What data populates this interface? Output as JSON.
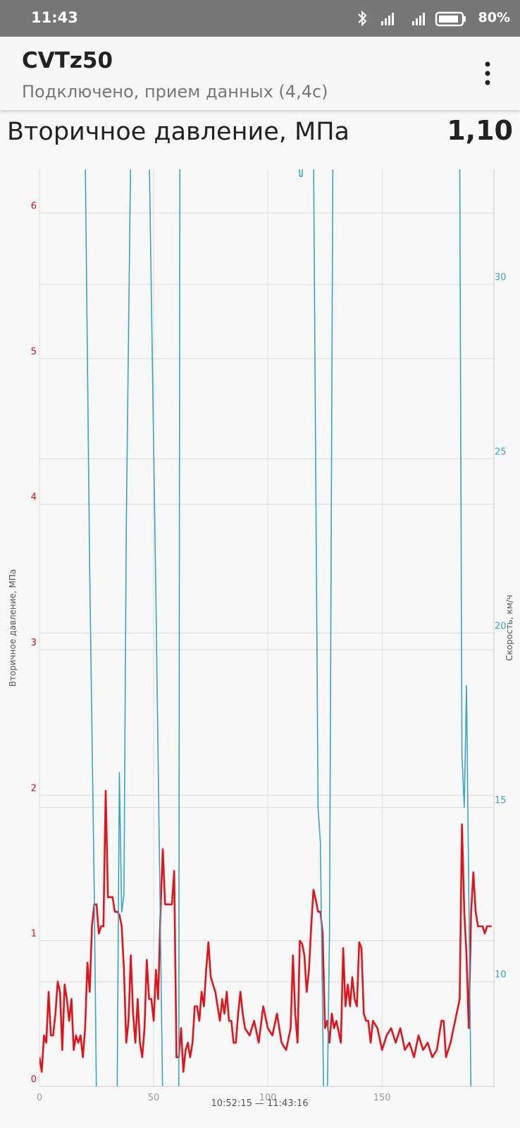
{
  "app": {
    "status_time": "11:43",
    "battery": "80%",
    "title": "CVTz50",
    "subtitle": "Подключено, прием данных (4,4с)",
    "current_value": "1,10"
  },
  "chart_data": {
    "type": "line",
    "title": "Вторичное давление, МПа",
    "y_label": "Вторичное давление, МПа",
    "y2_label": "Скорость, км/ч",
    "x_label": "10:52:15 — 11:43:16",
    "xlim": [
      0,
      199
    ],
    "xticks": [
      0,
      50,
      100,
      150
    ],
    "ylim": [
      0,
      6.3
    ],
    "yticks": [
      0,
      1,
      2,
      3,
      4,
      5,
      6
    ],
    "y2lim": [
      7,
      33.3
    ],
    "y2ticks": [
      10,
      15,
      20,
      25,
      30
    ],
    "grid": true,
    "series": [
      {
        "color": "#e0141a",
        "x": [
          0,
          1,
          2,
          3,
          4,
          5,
          6,
          7,
          8,
          9,
          10,
          11,
          12,
          13,
          14,
          15,
          16,
          17,
          18,
          19,
          20,
          21,
          22,
          23,
          24,
          25,
          26,
          27,
          28,
          29,
          30,
          31,
          32,
          33,
          34,
          35,
          36,
          37,
          38,
          39,
          40,
          41,
          42,
          43,
          44,
          45,
          46,
          47,
          48,
          49,
          50,
          51,
          52,
          53,
          54,
          55,
          56,
          57,
          58,
          59,
          60,
          61,
          62,
          63,
          64,
          65,
          66,
          67,
          68,
          69,
          70,
          71,
          72,
          73,
          74,
          75,
          76,
          77,
          78,
          79,
          80,
          81,
          82,
          83,
          84,
          85,
          86,
          87,
          88,
          89,
          90,
          92,
          94,
          96,
          98,
          100,
          102,
          104,
          106,
          108,
          110,
          111,
          112,
          113,
          114,
          115,
          116,
          117,
          118,
          119,
          120,
          121,
          122,
          123,
          124,
          125,
          126,
          127,
          128,
          129,
          130,
          132,
          133,
          134,
          135,
          136,
          137,
          138,
          139,
          140,
          141,
          142,
          143,
          144,
          145,
          146,
          148,
          150,
          152,
          154,
          156,
          158,
          160,
          162,
          164,
          166,
          168,
          170,
          172,
          174,
          176,
          177,
          178,
          180,
          182,
          184,
          185,
          186,
          187,
          188,
          189,
          190,
          191,
          192,
          193,
          194,
          195,
          196,
          198
        ],
        "values": [
          0.2,
          0.1,
          0.35,
          0.3,
          0.65,
          0.35,
          0.35,
          0.5,
          0.72,
          0.65,
          0.25,
          0.7,
          0.6,
          0.45,
          0.6,
          0.25,
          0.35,
          0.3,
          0.35,
          0.2,
          0.4,
          0.85,
          0.65,
          1.1,
          1.25,
          1.25,
          1.05,
          1.1,
          1.1,
          2.03,
          1.3,
          1.3,
          1.3,
          1.2,
          1.2,
          1.18,
          1.1,
          0.8,
          0.3,
          0.45,
          0.9,
          0.5,
          0.3,
          0.6,
          0.3,
          0.2,
          0.4,
          0.87,
          0.6,
          0.6,
          0.45,
          0.8,
          0.6,
          1.2,
          1.63,
          1.25,
          1.25,
          1.25,
          1.25,
          1.48,
          0.2,
          0.2,
          0.4,
          0.1,
          0.25,
          0.3,
          0.2,
          0.3,
          0.55,
          0.55,
          0.45,
          0.65,
          0.55,
          0.8,
          0.99,
          0.75,
          0.7,
          0.65,
          0.55,
          0.45,
          0.6,
          0.5,
          0.65,
          0.45,
          0.45,
          0.3,
          0.3,
          0.5,
          0.65,
          0.5,
          0.4,
          0.35,
          0.45,
          0.3,
          0.55,
          0.4,
          0.35,
          0.5,
          0.3,
          0.25,
          0.4,
          0.9,
          0.5,
          0.3,
          1.0,
          0.98,
          0.9,
          0.65,
          0.8,
          1.1,
          1.35,
          1.28,
          1.2,
          1.2,
          1.05,
          0.4,
          0.45,
          0.3,
          0.5,
          0.4,
          0.45,
          0.3,
          0.95,
          0.55,
          0.7,
          0.55,
          0.75,
          0.6,
          0.55,
          0.99,
          0.95,
          0.5,
          0.45,
          0.45,
          0.3,
          0.45,
          0.4,
          0.25,
          0.35,
          0.4,
          0.3,
          0.4,
          0.25,
          0.3,
          0.2,
          0.35,
          0.25,
          0.3,
          0.2,
          0.25,
          0.45,
          0.45,
          0.2,
          0.3,
          0.45,
          0.6,
          1.8,
          1.2,
          0.9,
          0.4,
          1.2,
          1.47,
          1.2,
          1.1,
          1.1,
          1.1,
          1.05,
          1.1,
          1.1
        ]
      },
      {
        "color": "#3aa3c8",
        "axis": "y2",
        "x": [
          20,
          22,
          24,
          25,
          34,
          35,
          36,
          37,
          38,
          40,
          48,
          51,
          54,
          61,
          61.5,
          113.5,
          114,
          115,
          115.5,
          120,
          122,
          123,
          124.5,
          126,
          127,
          128.5,
          184,
          185,
          186,
          187,
          189
        ],
        "values": [
          34,
          21.8,
          12.5,
          6.5,
          6.5,
          16,
          12,
          12.5,
          23,
          34,
          34,
          21,
          6.5,
          6.5,
          34,
          34,
          33.1,
          33.1,
          34,
          34,
          15,
          14,
          6.5,
          6.5,
          11.3,
          34,
          34,
          16.5,
          15,
          18.5,
          6.5
        ]
      }
    ]
  }
}
